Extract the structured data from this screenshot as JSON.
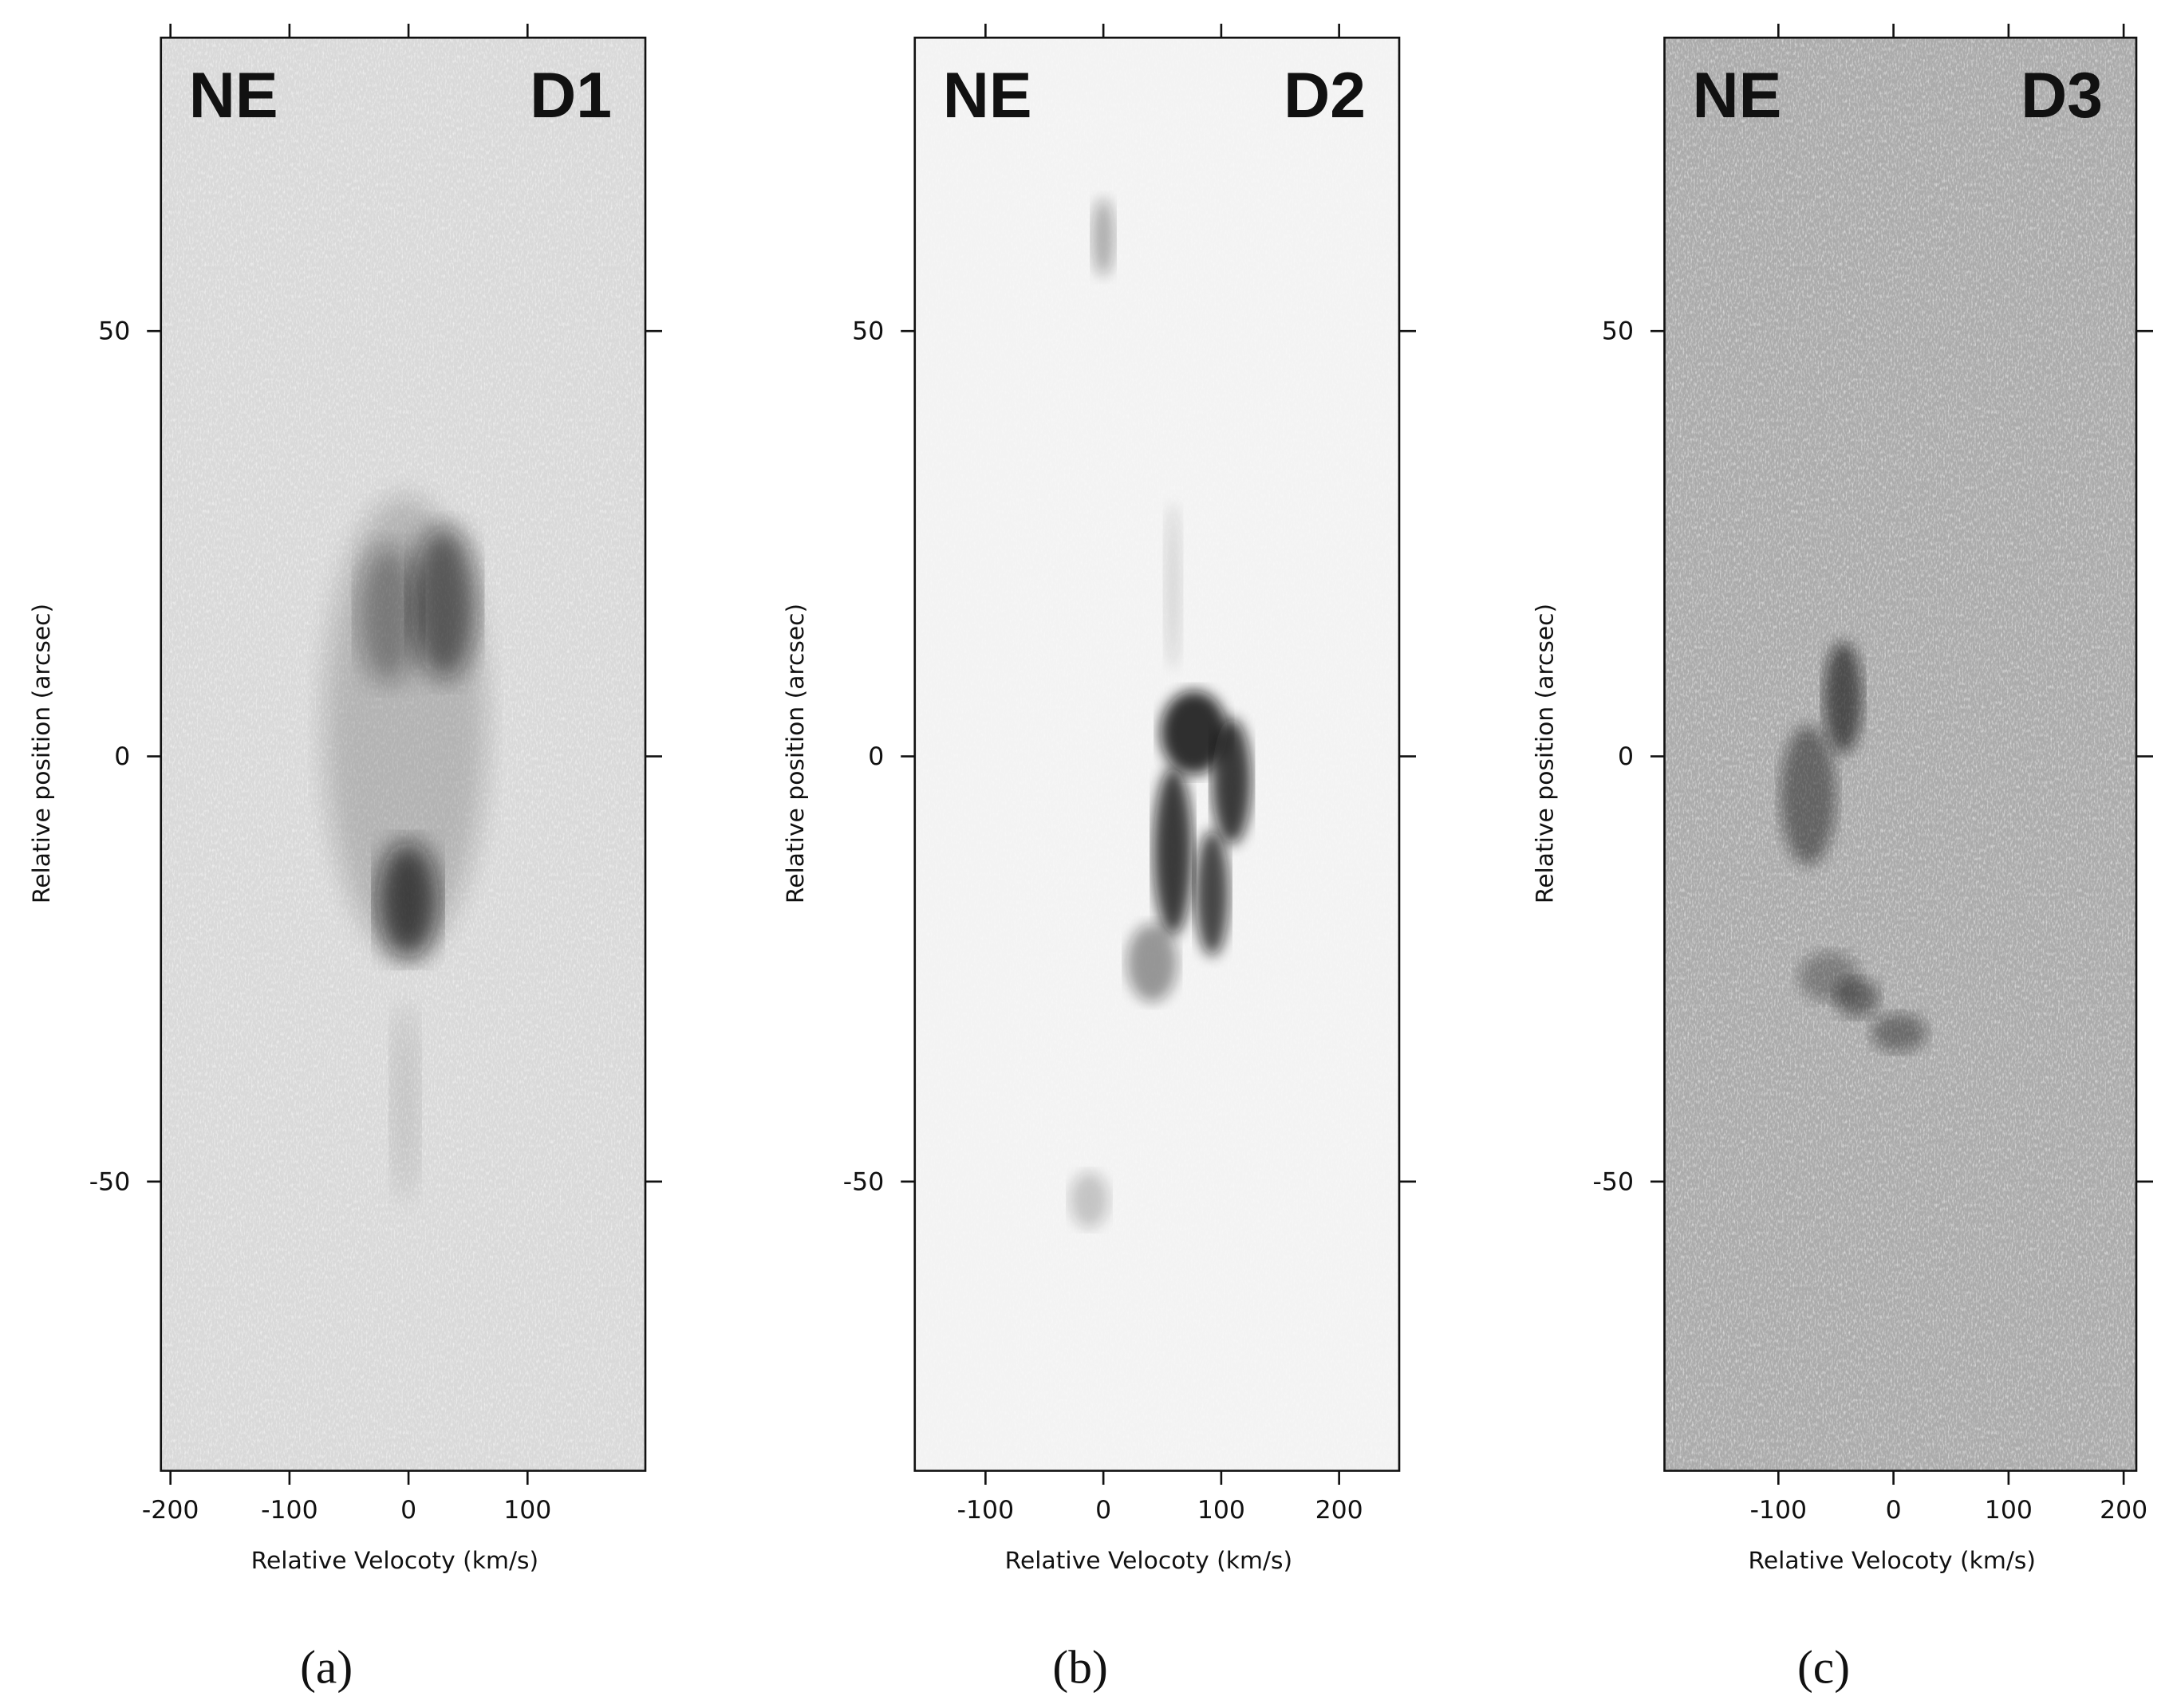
{
  "chart_data": [
    {
      "type": "image",
      "panel_label": "(a)",
      "corner_labels": [
        "NE",
        "D1"
      ],
      "background": "#d9d9d9",
      "xlabel": "Relative Velocoty (km/s)",
      "ylabel": "Relative position (arcsec)",
      "xlim": [
        -208,
        199
      ],
      "ylim": [
        -84,
        84.5
      ],
      "xticks": [
        -200,
        -100,
        0,
        100
      ],
      "yticks": [
        -50,
        0,
        50
      ]
    },
    {
      "type": "image",
      "panel_label": "(b)",
      "corner_labels": [
        "NE",
        "D2"
      ],
      "background": "#f3f3f3",
      "xlabel": "Relative Velocoty (km/s)",
      "ylabel": "Relative position (arcsec)",
      "xlim": [
        -160,
        251
      ],
      "ylim": [
        -84,
        84.5
      ],
      "xticks": [
        -100,
        0,
        100,
        200
      ],
      "yticks": [
        -50,
        0,
        50
      ]
    },
    {
      "type": "image",
      "panel_label": "(c)",
      "corner_labels": [
        "NE",
        "D3"
      ],
      "background": "#ababab",
      "xlabel": "Relative Velocoty (km/s)",
      "ylabel": "Relative position (arcsec)",
      "xlim": [
        -199,
        211
      ],
      "ylim": [
        -84,
        84.5
      ],
      "xticks": [
        -100,
        0,
        100,
        200
      ],
      "yticks": [
        -50,
        0,
        50
      ]
    }
  ]
}
